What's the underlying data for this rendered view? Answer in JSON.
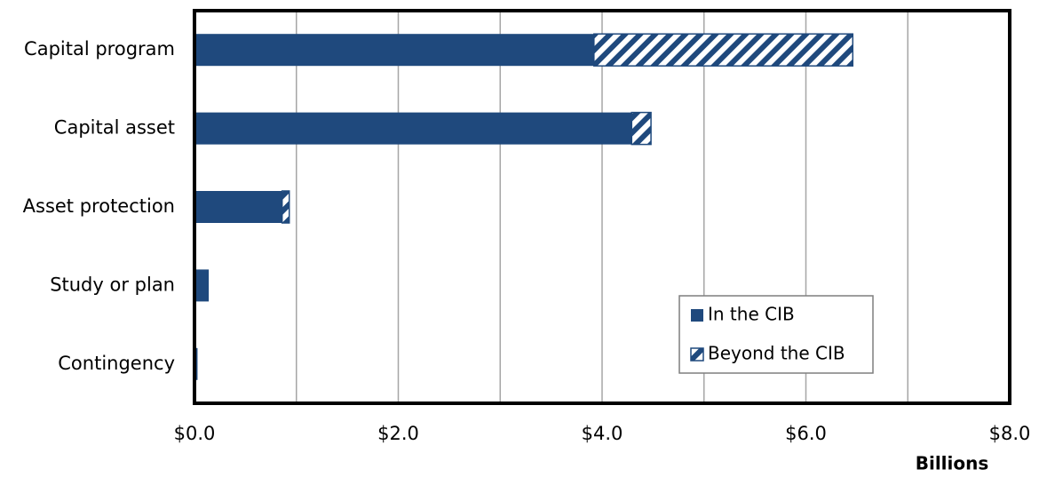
{
  "chart_data": {
    "type": "hbar_stacked",
    "categories": [
      "Capital program",
      "Capital asset",
      "Asset protection",
      "Study or plan",
      "Contingency"
    ],
    "series": [
      {
        "name": "In the CIB",
        "color": "#1f497d",
        "pattern": "solid",
        "values": [
          3.92,
          4.29,
          0.86,
          0.14,
          0.03
        ]
      },
      {
        "name": "Beyond the CIB",
        "color": "#1f497d",
        "pattern": "hatch",
        "values": [
          2.54,
          0.19,
          0.07,
          0,
          0
        ]
      }
    ],
    "xlim": [
      0,
      8
    ],
    "xticks": [
      {
        "value": 0,
        "label": "$0.0"
      },
      {
        "value": 2,
        "label": "$2.0"
      },
      {
        "value": 4,
        "label": "$4.0"
      },
      {
        "value": 6,
        "label": "$6.0"
      },
      {
        "value": 8,
        "label": "$8.0"
      }
    ],
    "xminor": [
      1,
      3,
      5,
      7
    ],
    "xlabel": "Billions",
    "grid": true,
    "legend": "lower right"
  }
}
